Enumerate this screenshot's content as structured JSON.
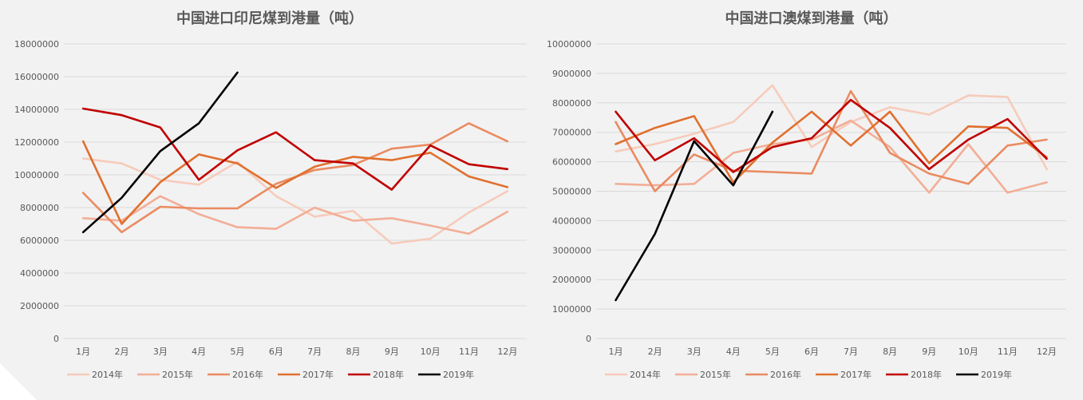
{
  "chart_data": [
    {
      "type": "line",
      "title": "中国进口印尼煤到港量（吨）",
      "xlabel": "",
      "ylabel": "",
      "categories": [
        "1月",
        "2月",
        "3月",
        "4月",
        "5月",
        "6月",
        "7月",
        "8月",
        "9月",
        "10月",
        "11月",
        "12月"
      ],
      "ylim": [
        0,
        18000000
      ],
      "yticks": [
        "0",
        "2000000",
        "4000000",
        "6000000",
        "8000000",
        "10000000",
        "12000000",
        "14000000",
        "16000000",
        "18000000"
      ],
      "grid": true,
      "legend": "bottom",
      "series": [
        {
          "name": "2014年",
          "color": "#f7cbbb",
          "values": [
            11000000,
            10700000,
            9700000,
            9400000,
            10800000,
            8700000,
            7450000,
            7800000,
            5800000,
            6100000,
            7700000,
            9000000
          ]
        },
        {
          "name": "2015年",
          "color": "#f2ae96",
          "values": [
            7350000,
            7200000,
            8700000,
            7600000,
            6800000,
            6700000,
            8000000,
            7200000,
            7350000,
            6900000,
            6400000,
            7750000
          ]
        },
        {
          "name": "2016年",
          "color": "#ea8b62",
          "values": [
            8900000,
            6500000,
            8050000,
            7950000,
            7950000,
            9450000,
            10300000,
            10600000,
            11600000,
            11850000,
            13150000,
            12050000
          ]
        },
        {
          "name": "2017年",
          "color": "#e0702e",
          "values": [
            12050000,
            7000000,
            9550000,
            11250000,
            10700000,
            9200000,
            10500000,
            11100000,
            10900000,
            11350000,
            9900000,
            9250000
          ]
        },
        {
          "name": "2018年",
          "color": "#c00000",
          "values": [
            14050000,
            13650000,
            12900000,
            9700000,
            11500000,
            12600000,
            10900000,
            10700000,
            9100000,
            11800000,
            10650000,
            10350000
          ]
        },
        {
          "name": "2019年",
          "color": "#000000",
          "values": [
            6500000,
            8600000,
            11450000,
            13150000,
            16250000,
            null,
            null,
            null,
            null,
            null,
            null,
            null
          ]
        }
      ]
    },
    {
      "type": "line",
      "title": "中国进口澳煤到港量（吨）",
      "xlabel": "",
      "ylabel": "",
      "categories": [
        "1月",
        "2月",
        "3月",
        "4月",
        "5月",
        "6月",
        "7月",
        "8月",
        "9月",
        "10月",
        "11月",
        "12月"
      ],
      "ylim": [
        0,
        10000000
      ],
      "yticks": [
        "0",
        "1000000",
        "2000000",
        "3000000",
        "4000000",
        "5000000",
        "6000000",
        "7000000",
        "8000000",
        "9000000",
        "10000000"
      ],
      "grid": true,
      "legend": "bottom",
      "series": [
        {
          "name": "2014年",
          "color": "#f7cbbb",
          "values": [
            6350000,
            6600000,
            6950000,
            7350000,
            8600000,
            6500000,
            7350000,
            7850000,
            7600000,
            8250000,
            8200000,
            5750000
          ]
        },
        {
          "name": "2015年",
          "color": "#f2ae96",
          "values": [
            5250000,
            5200000,
            5250000,
            6300000,
            6600000,
            6750000,
            7400000,
            6500000,
            4950000,
            6600000,
            4950000,
            5300000
          ]
        },
        {
          "name": "2016年",
          "color": "#ea8b62",
          "values": [
            7350000,
            5000000,
            6250000,
            5700000,
            5650000,
            5600000,
            8400000,
            6300000,
            5600000,
            5250000,
            6550000,
            6750000
          ]
        },
        {
          "name": "2017年",
          "color": "#e0702e",
          "values": [
            6600000,
            7150000,
            7550000,
            5300000,
            6650000,
            7700000,
            6550000,
            7700000,
            5950000,
            7200000,
            7150000,
            6150000
          ]
        },
        {
          "name": "2018年",
          "color": "#c00000",
          "values": [
            7700000,
            6050000,
            6800000,
            5650000,
            6500000,
            6800000,
            8100000,
            7150000,
            5750000,
            6750000,
            7450000,
            6100000
          ]
        },
        {
          "name": "2019年",
          "color": "#000000",
          "values": [
            1300000,
            3550000,
            6700000,
            5200000,
            7700000,
            null,
            null,
            null,
            null,
            null,
            null,
            null
          ]
        }
      ]
    }
  ]
}
